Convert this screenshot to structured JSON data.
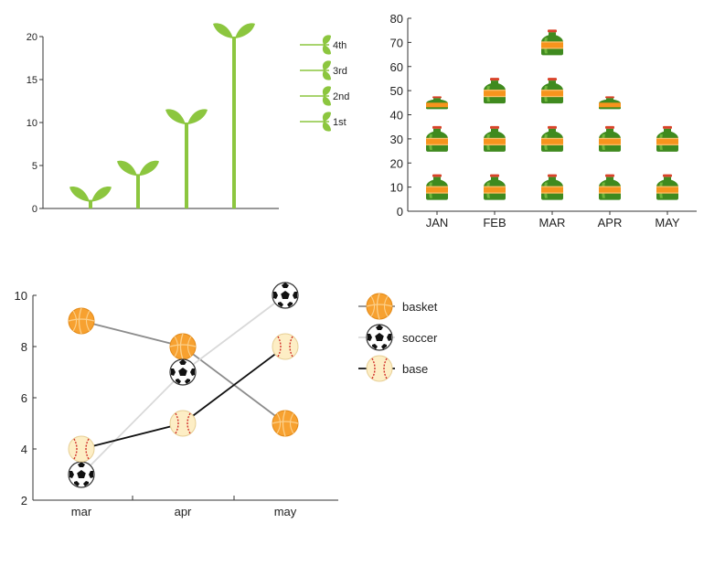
{
  "colors": {
    "sprout_green": "#8cc63f",
    "bottle_green": "#3f8a1f",
    "bottle_label": "#f7941d",
    "bottle_cap": "#d9432a",
    "basket_line": "#8c8c8c",
    "soccer_line": "#d9d9d9",
    "base_line": "#111111",
    "basket_ball": "#f7a130",
    "soccer_ball": "#ffffff",
    "base_ball": "#fdeec5"
  },
  "chart_data": [
    {
      "type": "bar",
      "style": "pictogram-sprouts",
      "title": "",
      "xlabel": "",
      "ylabel": "",
      "ylim": [
        0,
        20
      ],
      "yticks": [
        "0",
        "5",
        "10",
        "15",
        "20"
      ],
      "categories": [
        "1st",
        "2nd",
        "3rd",
        "4th"
      ],
      "values": [
        1,
        4,
        10,
        20
      ],
      "legend": {
        "placement": "right",
        "entries": [
          "4th",
          "3rd",
          "2nd",
          "1st"
        ]
      }
    },
    {
      "type": "bar",
      "style": "pictogram-bottles",
      "title": "",
      "xlabel": "",
      "ylabel": "",
      "ylim": [
        0,
        80
      ],
      "yticks": [
        "0",
        "10",
        "20",
        "30",
        "40",
        "50",
        "60",
        "70",
        "80"
      ],
      "categories": [
        "JAN",
        "FEB",
        "MAR",
        "APR",
        "MAY"
      ],
      "values": [
        50,
        60,
        80,
        50,
        40
      ],
      "unit_per_icon": 20,
      "icon_label": "Diet Drink"
    },
    {
      "type": "line",
      "style": "icon-markers",
      "title": "",
      "xlabel": "",
      "ylabel": "",
      "ylim": [
        2,
        10
      ],
      "yticks": [
        "2",
        "4",
        "6",
        "8",
        "10"
      ],
      "categories": [
        "mar",
        "apr",
        "may"
      ],
      "series": [
        {
          "name": "basket",
          "values": [
            9,
            8,
            5
          ],
          "icon": "basketball-icon"
        },
        {
          "name": "soccer",
          "values": [
            3,
            7,
            10
          ],
          "icon": "soccer-ball-icon"
        },
        {
          "name": "base",
          "values": [
            4,
            5,
            8
          ],
          "icon": "baseball-icon"
        }
      ],
      "legend": {
        "placement": "right"
      }
    }
  ]
}
